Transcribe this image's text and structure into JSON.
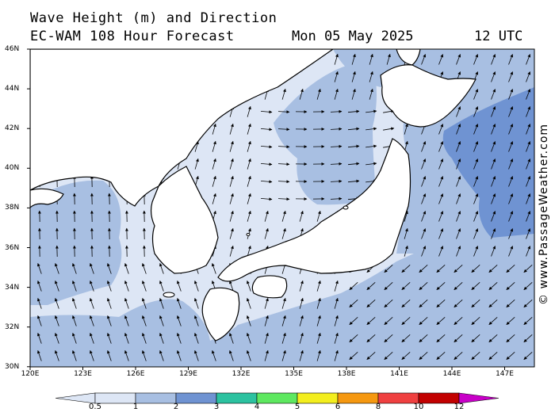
{
  "title": {
    "line1": "Wave Height (m) and Direction",
    "line2": "EC-WAM 108 Hour Forecast",
    "date": "Mon 05 May 2025",
    "time": "12 UTC"
  },
  "credit": "© www.PassageWeather.com",
  "lat_labels": [
    "46N",
    "44N",
    "42N",
    "40N",
    "38N",
    "36N",
    "34N",
    "32N",
    "30N"
  ],
  "lon_labels": [
    "120E",
    "123E",
    "126E",
    "129E",
    "132E",
    "135E",
    "138E",
    "141E",
    "144E",
    "147E"
  ],
  "colorbar": {
    "ticks": [
      "0.5",
      "1",
      "2",
      "3",
      "4",
      "5",
      "6",
      "8",
      "10",
      "12"
    ],
    "colors": [
      "#dde6f5",
      "#a8bfe2",
      "#6f93d2",
      "#2cc2a0",
      "#5ee860",
      "#f3ee1e",
      "#f59810",
      "#ef4040",
      "#c20000",
      "#c800c8"
    ]
  },
  "colors": {
    "land": "#ffffff",
    "sea_low": "#dde6f5",
    "sea_mid": "#a8bfe2",
    "sea_high": "#6f93d2"
  }
}
